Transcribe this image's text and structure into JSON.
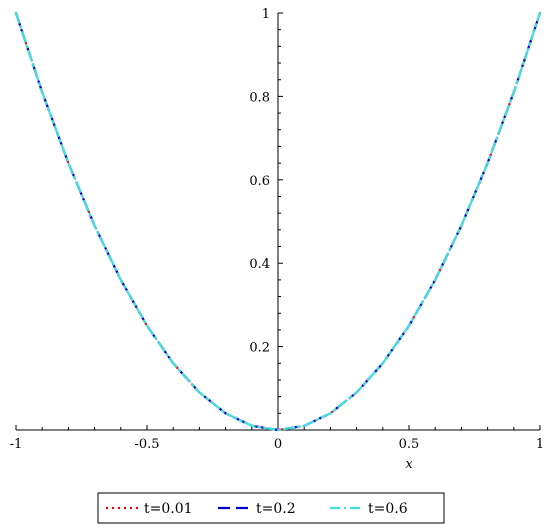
{
  "chart_data": {
    "type": "line",
    "xlabel": "x",
    "ylabel": "",
    "xlim": [
      -1,
      1
    ],
    "ylim": [
      0,
      1
    ],
    "x_ticks": [
      -1,
      -0.5,
      0,
      0.5,
      1
    ],
    "x_tick_labels": [
      "-1",
      "-0.5",
      "0",
      "0.5",
      "1"
    ],
    "y_ticks": [
      0.2,
      0.4,
      0.6,
      0.8,
      1
    ],
    "y_tick_labels": [
      "0.2",
      "0.4",
      "0.6",
      "0.8",
      "1"
    ],
    "grid": false,
    "legend_position": "bottom",
    "x": [
      -1,
      -0.9,
      -0.8,
      -0.7,
      -0.6,
      -0.5,
      -0.4,
      -0.3,
      -0.2,
      -0.1,
      0,
      0.1,
      0.2,
      0.3,
      0.4,
      0.5,
      0.6,
      0.7,
      0.8,
      0.9,
      1
    ],
    "series": [
      {
        "name": "t=0.01",
        "color": "#ff0000",
        "dash": "dotted",
        "values": [
          1,
          0.81,
          0.64,
          0.49,
          0.36,
          0.25,
          0.16,
          0.09,
          0.04,
          0.01,
          0,
          0.01,
          0.04,
          0.09,
          0.16,
          0.25,
          0.36,
          0.49,
          0.64,
          0.81,
          1
        ]
      },
      {
        "name": "t=0.2",
        "color": "#0000c8",
        "dash": "dashed",
        "values": [
          1,
          0.81,
          0.64,
          0.49,
          0.36,
          0.25,
          0.16,
          0.09,
          0.04,
          0.01,
          0,
          0.01,
          0.04,
          0.09,
          0.16,
          0.25,
          0.36,
          0.49,
          0.64,
          0.81,
          1
        ]
      },
      {
        "name": "t=0.6",
        "color": "#40e0e0",
        "dash": "dash-dot",
        "values": [
          1,
          0.81,
          0.64,
          0.49,
          0.36,
          0.25,
          0.16,
          0.09,
          0.04,
          0.01,
          0,
          0.01,
          0.04,
          0.09,
          0.16,
          0.25,
          0.36,
          0.49,
          0.64,
          0.81,
          1
        ]
      }
    ]
  }
}
